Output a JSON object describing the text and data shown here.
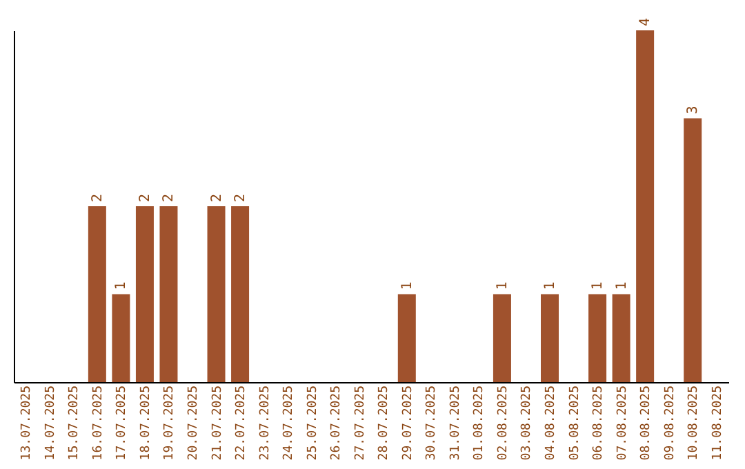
{
  "chart_data": {
    "type": "bar",
    "categories": [
      "13.07.2025",
      "14.07.2025",
      "15.07.2025",
      "16.07.2025",
      "17.07.2025",
      "18.07.2025",
      "19.07.2025",
      "20.07.2025",
      "21.07.2025",
      "22.07.2025",
      "23.07.2025",
      "24.07.2025",
      "25.07.2025",
      "26.07.2025",
      "27.07.2025",
      "28.07.2025",
      "29.07.2025",
      "30.07.2025",
      "31.07.2025",
      "01.08.2025",
      "02.08.2025",
      "03.08.2025",
      "04.08.2025",
      "05.08.2025",
      "06.08.2025",
      "07.08.2025",
      "08.08.2025",
      "09.08.2025",
      "10.08.2025",
      "11.08.2025"
    ],
    "values": [
      null,
      null,
      null,
      2,
      1,
      2,
      2,
      null,
      2,
      2,
      null,
      null,
      null,
      null,
      null,
      null,
      1,
      null,
      null,
      null,
      1,
      null,
      1,
      null,
      1,
      1,
      4,
      null,
      3,
      null
    ],
    "color": "#a0522d",
    "ylim": [
      0,
      4
    ],
    "tick_labels": "x",
    "data_labels": true,
    "grid": false
  }
}
